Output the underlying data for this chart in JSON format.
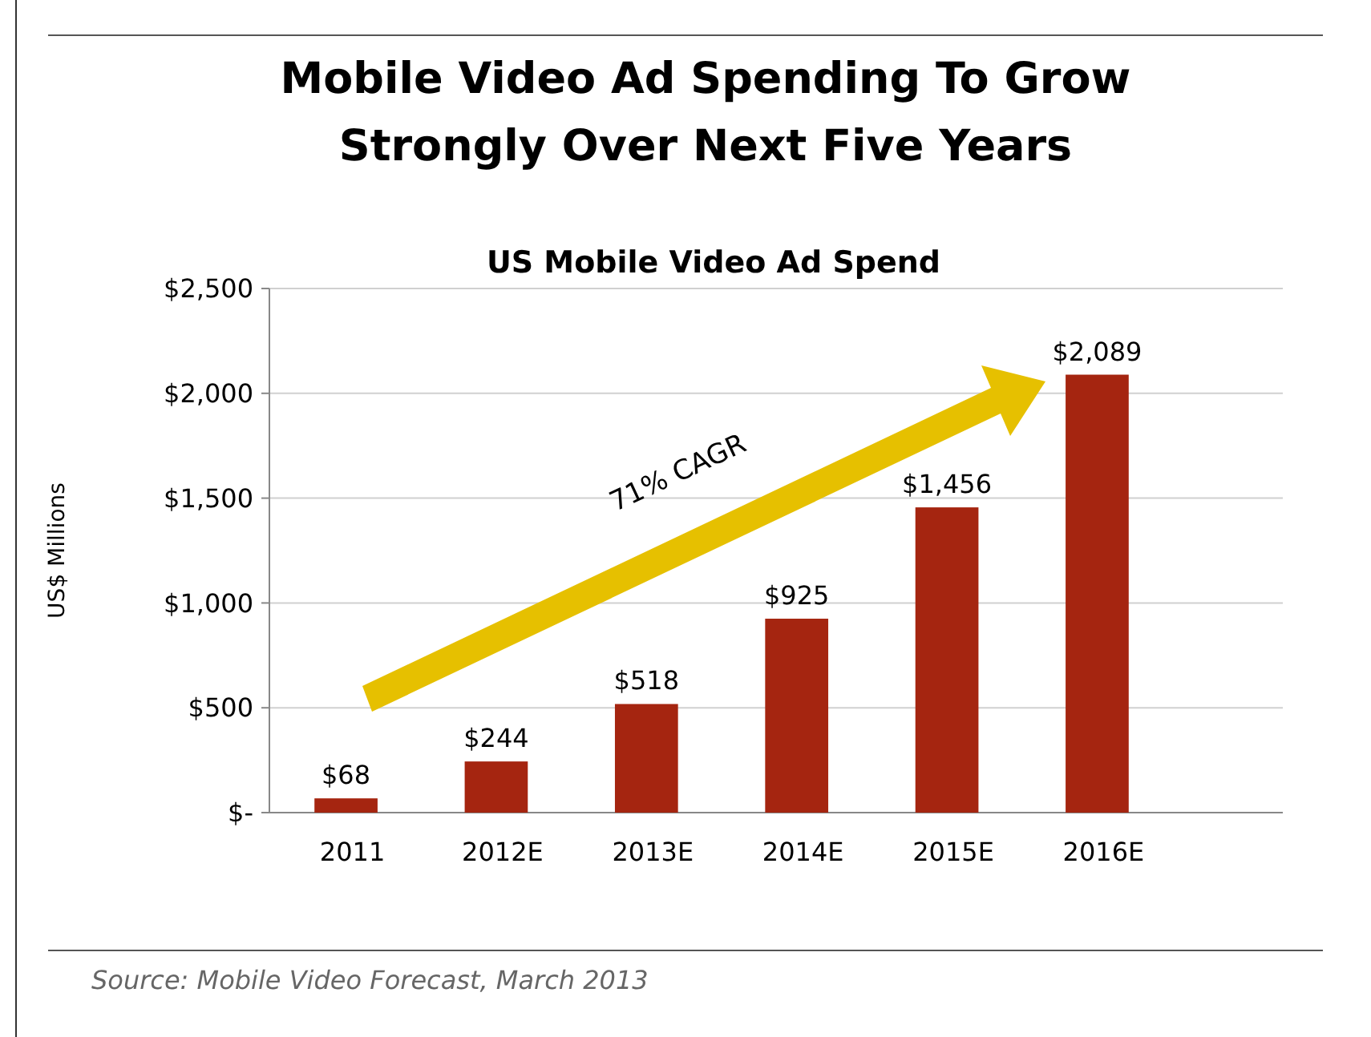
{
  "chart_data": {
    "type": "bar",
    "title": "Mobile Video Ad Spending To Grow\nStrongly Over Next Five Years",
    "subtitle": "US Mobile Video Ad Spend",
    "ylabel": "US$ Millions",
    "categories": [
      "2011",
      "2012E",
      "2013E",
      "2014E",
      "2015E",
      "2016E"
    ],
    "values": [
      68,
      244,
      518,
      925,
      1456,
      2089
    ],
    "value_labels": [
      "$68",
      "$244",
      "$518",
      "$925",
      "$1,456",
      "$2,089"
    ],
    "color": "#a52510",
    "ylim": [
      0,
      2500
    ],
    "yticks": [
      {
        "value": 0,
        "label": "$-"
      },
      {
        "value": 500,
        "label": "$500"
      },
      {
        "value": 1000,
        "label": "$1,000"
      },
      {
        "value": 1500,
        "label": "$1,500"
      },
      {
        "value": 2000,
        "label": "$2,000"
      },
      {
        "value": 2500,
        "label": "$2,500"
      }
    ],
    "grid": "y",
    "annotations": [
      "71% CAGR",
      "Source:  Mobile Video Forecast, March 2013"
    ]
  }
}
